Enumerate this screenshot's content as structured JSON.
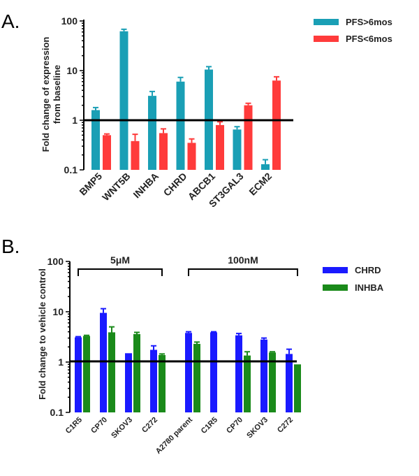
{
  "chart_data": [
    {
      "type": "bar",
      "panel_label": "A.",
      "ylabel_line1": "Fold change of expression",
      "ylabel_line2": "from baseline",
      "yscale": "log",
      "ylim": [
        0.1,
        100
      ],
      "yticks": [
        "0.1",
        "1",
        "10",
        "100"
      ],
      "reference_line": 1,
      "categories": [
        "BMP5",
        "WNT5B",
        "INHBA",
        "CHRD",
        "ABCB1",
        "ST3GAL3",
        "ECM2"
      ],
      "legend_position": "top-right",
      "series": [
        {
          "name": "PFS>6mos",
          "color": "#1a9fb5",
          "values": [
            1.6,
            62,
            3.1,
            6.0,
            10.5,
            0.65,
            0.13
          ],
          "errors": [
            1.8,
            68,
            3.8,
            7.3,
            12.0,
            0.74,
            0.16
          ]
        },
        {
          "name": "PFS<6mos",
          "color": "#ff3b3b",
          "values": [
            0.5,
            0.38,
            0.55,
            0.35,
            0.8,
            2.0,
            6.3
          ],
          "errors": [
            0.53,
            0.52,
            0.67,
            0.42,
            0.93,
            2.2,
            7.5
          ]
        }
      ]
    },
    {
      "type": "bar",
      "panel_label": "B.",
      "ylabel": "Fold change to vehicle control",
      "yscale": "log",
      "ylim": [
        0.1,
        100
      ],
      "yticks": [
        "0.1",
        "1",
        "10",
        "100"
      ],
      "reference_line": 1,
      "groups": [
        {
          "label": "5μM",
          "categories": [
            "C1R5",
            "CP70",
            "SKOV3",
            "C272"
          ],
          "series_values": [
            [
              3.1,
              9.5,
              1.5,
              1.75
            ],
            [
              3.3,
              3.9,
              3.6,
              1.38
            ]
          ],
          "series_errors": [
            [
              3.2,
              11.5,
              1.5,
              2.1
            ],
            [
              3.4,
              5.0,
              3.9,
              1.45
            ]
          ]
        },
        {
          "label": "100nM",
          "categories": [
            "A2780 parent",
            "C1R5",
            "CP70",
            "SKOV3",
            "C272"
          ],
          "series_values": [
            [
              3.8,
              3.9,
              3.4,
              2.8,
              1.45
            ],
            [
              2.3,
              null,
              1.35,
              1.55,
              0.9
            ]
          ],
          "series_errors": [
            [
              4.0,
              4.0,
              3.7,
              3.0,
              1.8
            ],
            [
              2.5,
              null,
              1.6,
              1.6,
              0.9
            ]
          ]
        }
      ],
      "legend_position": "top-right",
      "series": [
        {
          "name": "CHRD",
          "color": "#1a1aff"
        },
        {
          "name": "INHBA",
          "color": "#1a8a1a"
        }
      ]
    }
  ]
}
